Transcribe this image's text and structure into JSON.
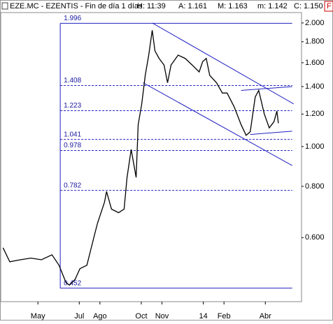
{
  "chart_data": {
    "type": "line",
    "log_scale": true,
    "title": "EZE.MC - EZENTIS - Fin de día 1 días",
    "stats": [
      "H: 11:39",
      "A: 1.161",
      "M: 1.163",
      "m: 1.142",
      "C: 1.150"
    ],
    "badge": "F",
    "color": "#000000",
    "x": [
      -1.69,
      -1.36,
      -0.85,
      -0.34,
      0.17,
      0.68,
      1.02,
      1.36,
      1.53,
      1.8,
      2.03,
      2.37,
      2.71,
      2.88,
      3.22,
      3.32,
      3.56,
      3.9,
      4.17,
      4.31,
      4.51,
      4.75,
      4.85,
      5.02,
      5.19,
      5.36,
      5.53,
      5.66,
      5.86,
      6.1,
      6.27,
      6.44,
      6.78,
      7.12,
      7.46,
      7.8,
      7.97,
      8.14,
      8.31,
      8.64,
      8.92,
      9.15,
      9.49,
      9.83,
      10.07,
      10.27,
      10.51,
      10.68,
      10.95,
      11.19,
      11.42,
      11.56,
      11.63
    ],
    "values": [
      0.567,
      0.524,
      0.53,
      0.535,
      0.53,
      0.545,
      0.514,
      0.466,
      0.46,
      0.475,
      0.504,
      0.514,
      0.602,
      0.65,
      0.732,
      0.777,
      0.704,
      0.69,
      0.704,
      0.841,
      0.984,
      0.841,
      1.13,
      1.27,
      1.49,
      1.67,
      1.92,
      1.71,
      1.64,
      1.58,
      1.43,
      1.58,
      1.67,
      1.64,
      1.58,
      1.52,
      1.61,
      1.64,
      1.49,
      1.43,
      1.35,
      1.35,
      1.25,
      1.13,
      1.065,
      1.086,
      1.32,
      1.37,
      1.2,
      1.11,
      1.15,
      1.22,
      1.14
    ],
    "xlim": [
      -1.8,
      12.75
    ],
    "xticks": [
      {
        "value": 0,
        "label": "May"
      },
      {
        "value": 2,
        "label": "Jul"
      },
      {
        "value": 3,
        "label": "Ago"
      },
      {
        "value": 5,
        "label": "Oct"
      },
      {
        "value": 6,
        "label": "Nov"
      },
      {
        "value": 8,
        "label": "14"
      },
      {
        "value": 9,
        "label": "Feb"
      },
      {
        "value": 11,
        "label": "Abr"
      }
    ],
    "ylim": [
      0.419,
      2.12
    ],
    "yticks": [
      {
        "value": 0.6,
        "label": "0.600"
      },
      {
        "value": 0.8,
        "label": "0.800"
      },
      {
        "value": 1,
        "label": "1.000"
      },
      {
        "value": 1.2,
        "label": "1.200"
      },
      {
        "value": 1.4,
        "label": "1.400"
      },
      {
        "value": 1.6,
        "label": "1.600"
      },
      {
        "value": 1.8,
        "label": "1.800"
      },
      {
        "value": 2,
        "label": "2.000"
      }
    ],
    "fib_x": [
      1.08,
      12.3
    ],
    "fib_levels": [
      {
        "value": 1.996,
        "label": "1.996"
      },
      {
        "value": 1.408,
        "label": "1.408"
      },
      {
        "value": 1.223,
        "label": "1.223"
      },
      {
        "value": 1.041,
        "label": "1.041"
      },
      {
        "value": 0.978,
        "label": "0.978"
      },
      {
        "value": 0.782,
        "label": "0.782"
      },
      {
        "value": 0.452,
        "label": "0.452"
      }
    ],
    "trendlines": [
      {
        "x": [
          5.53,
          12.37
        ],
        "y": [
          2.0,
          1.27
        ]
      },
      {
        "x": [
          5.09,
          12.3
        ],
        "y": [
          1.43,
          0.899
        ]
      },
      {
        "x": [
          9.83,
          12.3
        ],
        "y": [
          1.37,
          1.4
        ]
      },
      {
        "x": [
          10.27,
          12.3
        ],
        "y": [
          1.07,
          1.09
        ]
      }
    ]
  }
}
